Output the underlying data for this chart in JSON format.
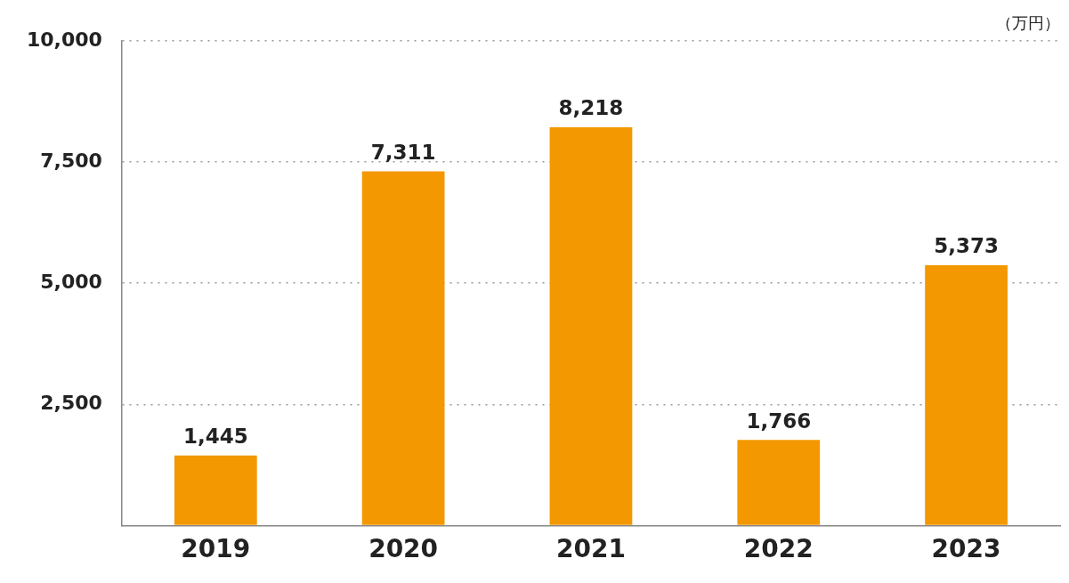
{
  "chart_data": {
    "type": "bar",
    "ylabel": "（万円）",
    "categories": [
      "2019",
      "2020",
      "2021",
      "2022",
      "2023"
    ],
    "values": [
      1445,
      7311,
      8218,
      1766,
      5373
    ],
    "value_labels": [
      "1,445",
      "7,311",
      "8,218",
      "1,766",
      "5,373"
    ],
    "color": "#f39800",
    "ylim": [
      0,
      10000
    ],
    "yticks": [
      {
        "value": 0,
        "label": null
      },
      {
        "value": 2500,
        "label": "2,500"
      },
      {
        "value": 5000,
        "label": "5,000"
      },
      {
        "value": 7500,
        "label": "7,500"
      },
      {
        "value": 10000,
        "label": "10,000"
      }
    ],
    "grid": "y",
    "legend": false
  }
}
